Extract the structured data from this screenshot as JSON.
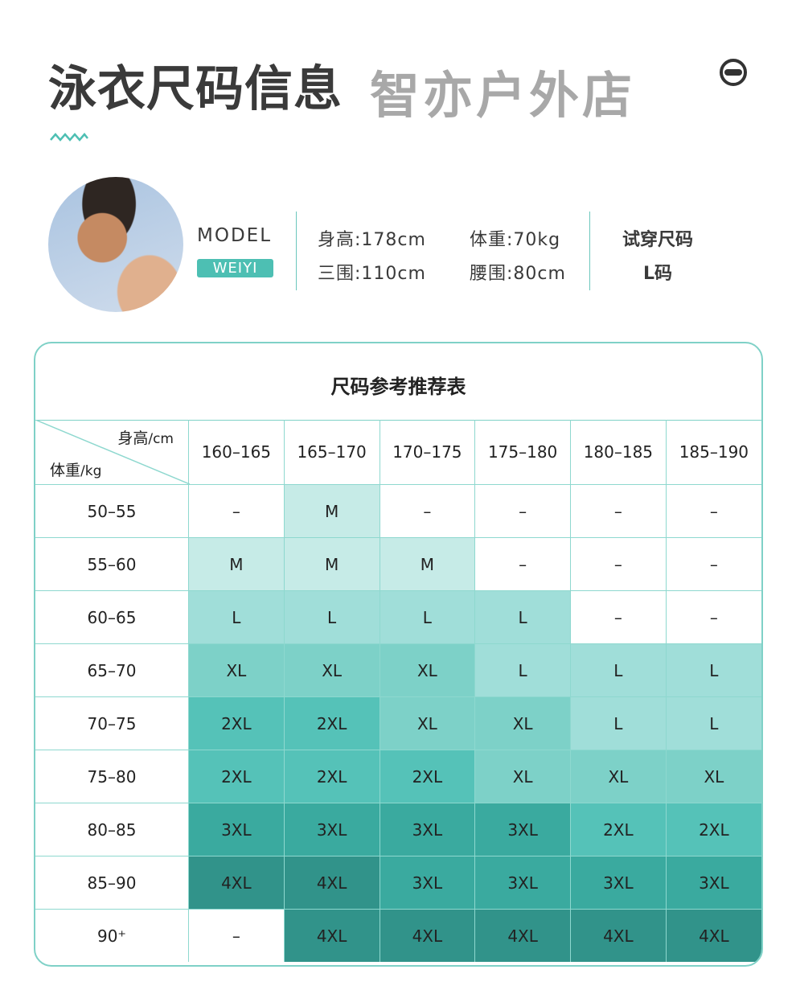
{
  "header": {
    "title": "泳衣尺码信息",
    "logo_icon": "goggles-logo-icon",
    "accent": "#4dbfb3"
  },
  "model": {
    "label": "MODEL",
    "name": "WEIYI",
    "height": "身高:178cm",
    "weight": "体重:70kg",
    "bust": "三围:110cm",
    "waist": "腰围:80cm",
    "tryon_label": "试穿尺码",
    "tryon_size": "L码"
  },
  "table": {
    "title": "尺码参考推荐表",
    "corner_height": "身高",
    "corner_height_unit": "/cm",
    "corner_weight": "体重",
    "corner_weight_unit": "/kg",
    "columns": [
      "160–165",
      "165–170",
      "170–175",
      "175–180",
      "180–185",
      "185–190"
    ],
    "rows": [
      {
        "weight": "50–55",
        "sizes": [
          "–",
          "M",
          "–",
          "–",
          "–",
          "–"
        ]
      },
      {
        "weight": "55–60",
        "sizes": [
          "M",
          "M",
          "M",
          "–",
          "–",
          "–"
        ]
      },
      {
        "weight": "60–65",
        "sizes": [
          "L",
          "L",
          "L",
          "L",
          "–",
          "–"
        ]
      },
      {
        "weight": "65–70",
        "sizes": [
          "XL",
          "XL",
          "XL",
          "L",
          "L",
          "L"
        ]
      },
      {
        "weight": "70–75",
        "sizes": [
          "2XL",
          "2XL",
          "XL",
          "XL",
          "L",
          "L"
        ]
      },
      {
        "weight": "75–80",
        "sizes": [
          "2XL",
          "2XL",
          "2XL",
          "XL",
          "XL",
          "XL"
        ]
      },
      {
        "weight": "80–85",
        "sizes": [
          "3XL",
          "3XL",
          "3XL",
          "3XL",
          "2XL",
          "2XL"
        ]
      },
      {
        "weight": "85–90",
        "sizes": [
          "4XL",
          "4XL",
          "3XL",
          "3XL",
          "3XL",
          "3XL"
        ]
      },
      {
        "weight": "90⁺",
        "sizes": [
          "–",
          "4XL",
          "4XL",
          "4XL",
          "4XL",
          "4XL"
        ]
      }
    ],
    "size_colors": {
      "–": "#ffffff",
      "M": "#c6ebe7",
      "L": "#a0ded9",
      "XL": "#7dd1c8",
      "2XL": "#55c2b8",
      "3XL": "#3aaa9f",
      "4XL": "#31938a"
    }
  },
  "watermark": "智亦户外店"
}
